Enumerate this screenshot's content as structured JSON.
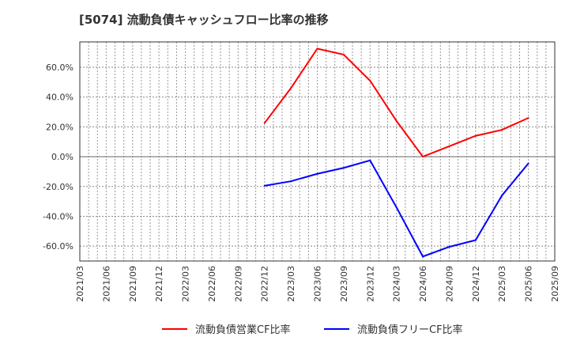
{
  "chart_data": {
    "type": "line",
    "title": "[5074]  流動負債キャッシュフロー比率の推移",
    "x": [
      "2022/12",
      "2023/03",
      "2023/06",
      "2023/09",
      "2023/12",
      "2024/03",
      "2024/06",
      "2024/09",
      "2024/12",
      "2025/03",
      "2025/06"
    ],
    "x_ticks": [
      "2021/03",
      "2021/06",
      "2021/09",
      "2021/12",
      "2022/03",
      "2022/06",
      "2022/09",
      "2022/12",
      "2023/03",
      "2023/06",
      "2023/09",
      "2023/12",
      "2024/03",
      "2024/06",
      "2024/09",
      "2024/12",
      "2025/03",
      "2025/06",
      "2025/09"
    ],
    "y_ticks": [
      60,
      40,
      20,
      0,
      -20,
      -40,
      -60
    ],
    "y_tick_labels": [
      "60.0%",
      "40.0%",
      "20.0%",
      "0.0%",
      "-20.0%",
      "-40.0%",
      "-60.0%"
    ],
    "ylim": [
      -70,
      77
    ],
    "grid": true,
    "legend_position": "bottom",
    "series": [
      {
        "name": "流動負債営業CF比率",
        "color": "#ff0000",
        "values": [
          22.5,
          46,
          72.5,
          68.5,
          51,
          24,
          0,
          7,
          14,
          18,
          26
        ]
      },
      {
        "name": "流動負債フリーCF比率",
        "color": "#0000ff",
        "values": [
          -19.5,
          -16.5,
          -11.5,
          -7.5,
          -2.5,
          -34,
          -67,
          -60.5,
          -56,
          -26,
          -4.5
        ]
      }
    ]
  }
}
